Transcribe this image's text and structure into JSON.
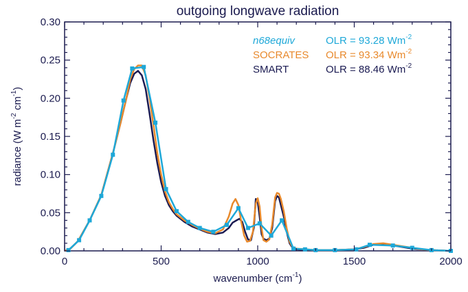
{
  "chart_data": {
    "type": "line",
    "title": "outgoing longwave radiation",
    "xlabel": {
      "text": "wavenumber (cm",
      "sup": "-1",
      "suffix": ")"
    },
    "ylabel": {
      "parts": [
        "radiance (W m",
        "-2",
        " cm",
        "-1",
        ")"
      ]
    },
    "xlim": [
      0,
      2000
    ],
    "ylim": [
      0,
      0.3
    ],
    "xticks": [
      0,
      500,
      1000,
      1500,
      2000
    ],
    "xtick_labels": [
      "0",
      "500",
      "1000",
      "1500",
      "2000"
    ],
    "yticks": [
      0.0,
      0.05,
      0.1,
      0.15,
      0.2,
      0.25,
      0.3
    ],
    "ytick_labels": [
      "0.00",
      "0.05",
      "0.10",
      "0.15",
      "0.20",
      "0.25",
      "0.30"
    ],
    "grid": false,
    "legend_position": "top-right",
    "series": [
      {
        "name": "SMART",
        "color": "#1b1b52",
        "italic": false,
        "olr_text": "OLR = 88.46 Wm",
        "olr_sup": "-2",
        "x": [
          0,
          30,
          70,
          130,
          190,
          250,
          290,
          320,
          340,
          360,
          380,
          400,
          420,
          440,
          460,
          480,
          500,
          520,
          540,
          560,
          580,
          620,
          660,
          700,
          740,
          780,
          820,
          850,
          870,
          890,
          905,
          920,
          935,
          950,
          965,
          980,
          990,
          1000,
          1010,
          1020,
          1030,
          1045,
          1060,
          1075,
          1090,
          1100,
          1110,
          1120,
          1135,
          1150,
          1165,
          1180,
          1200,
          1250,
          1300,
          1400,
          1500,
          1550,
          1600,
          1650,
          1700,
          1750,
          1800,
          1850,
          1900,
          2000
        ],
        "y": [
          0.0,
          0.003,
          0.013,
          0.04,
          0.073,
          0.128,
          0.168,
          0.2,
          0.22,
          0.232,
          0.236,
          0.23,
          0.212,
          0.18,
          0.145,
          0.115,
          0.09,
          0.072,
          0.06,
          0.052,
          0.046,
          0.038,
          0.032,
          0.028,
          0.024,
          0.022,
          0.024,
          0.03,
          0.037,
          0.04,
          0.042,
          0.038,
          0.025,
          0.015,
          0.014,
          0.03,
          0.068,
          0.064,
          0.045,
          0.022,
          0.016,
          0.014,
          0.016,
          0.03,
          0.065,
          0.072,
          0.07,
          0.06,
          0.045,
          0.025,
          0.01,
          0.004,
          0.002,
          0.001,
          0.001,
          0.001,
          0.002,
          0.004,
          0.008,
          0.008,
          0.007,
          0.005,
          0.003,
          0.002,
          0.001,
          0.0
        ]
      },
      {
        "name": "SOCRATES",
        "color": "#e8892c",
        "italic": false,
        "olr_text": "OLR = 93.34 Wm",
        "olr_sup": "-2",
        "x": [
          0,
          30,
          70,
          130,
          190,
          250,
          290,
          320,
          340,
          360,
          380,
          400,
          420,
          440,
          460,
          480,
          500,
          520,
          540,
          560,
          580,
          620,
          660,
          700,
          740,
          780,
          820,
          850,
          870,
          885,
          900,
          915,
          930,
          945,
          960,
          975,
          990,
          1000,
          1010,
          1020,
          1030,
          1045,
          1060,
          1075,
          1090,
          1100,
          1110,
          1120,
          1135,
          1150,
          1165,
          1180,
          1200,
          1250,
          1300,
          1400,
          1500,
          1550,
          1600,
          1650,
          1700,
          1750,
          1800,
          1850,
          1900,
          2000
        ],
        "y": [
          0.0,
          0.003,
          0.013,
          0.04,
          0.073,
          0.128,
          0.168,
          0.2,
          0.225,
          0.238,
          0.243,
          0.243,
          0.23,
          0.2,
          0.165,
          0.128,
          0.1,
          0.078,
          0.064,
          0.055,
          0.048,
          0.04,
          0.034,
          0.029,
          0.025,
          0.023,
          0.028,
          0.045,
          0.062,
          0.068,
          0.06,
          0.038,
          0.02,
          0.012,
          0.013,
          0.025,
          0.062,
          0.069,
          0.058,
          0.03,
          0.014,
          0.012,
          0.015,
          0.035,
          0.07,
          0.076,
          0.075,
          0.068,
          0.052,
          0.03,
          0.012,
          0.005,
          0.003,
          0.002,
          0.001,
          0.001,
          0.002,
          0.005,
          0.009,
          0.01,
          0.008,
          0.006,
          0.004,
          0.002,
          0.001,
          0.0
        ]
      },
      {
        "name": "n68equiv",
        "color": "#1ea8d8",
        "italic": true,
        "olr_text": "OLR = 93.28 Wm",
        "olr_sup": "-2",
        "x": [
          20,
          75,
          130,
          190,
          250,
          305,
          350,
          410,
          470,
          525,
          580,
          640,
          700,
          770,
          840,
          900,
          950,
          1010,
          1070,
          1125,
          1185,
          1245,
          1300,
          1400,
          1510,
          1580,
          1700,
          1800,
          1900,
          2000
        ],
        "y": [
          0.001,
          0.014,
          0.04,
          0.072,
          0.126,
          0.197,
          0.239,
          0.241,
          0.168,
          0.081,
          0.052,
          0.038,
          0.03,
          0.025,
          0.034,
          0.056,
          0.03,
          0.036,
          0.02,
          0.04,
          0.003,
          0.002,
          0.001,
          0.001,
          0.002,
          0.008,
          0.007,
          0.004,
          0.001,
          0.0
        ],
        "markers": [
          20,
          75,
          130,
          190,
          250,
          305,
          350,
          410,
          470,
          525,
          580,
          640,
          700,
          770,
          840,
          900,
          950,
          1010,
          1070,
          1125,
          1185,
          1245,
          1300,
          1400,
          1510,
          1580,
          1700,
          1800,
          1900,
          2000
        ]
      }
    ],
    "legend_order": [
      "n68equiv",
      "SOCRATES",
      "SMART"
    ]
  },
  "colors": {
    "axis": "#1a1a4e",
    "background": "#ffffff"
  }
}
